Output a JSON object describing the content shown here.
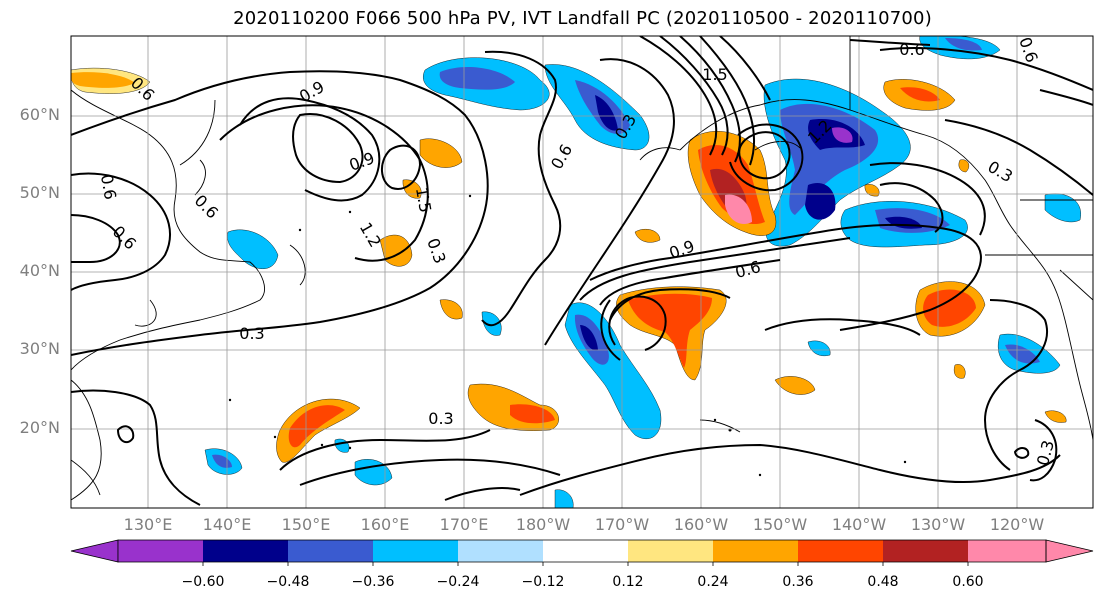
{
  "title": "2020110200 F066 500 hPa PV, IVT Landfall PC (2020110500 - 2020110700)",
  "lat_labels": [
    "60°N",
    "50°N",
    "40°N",
    "30°N",
    "20°N"
  ],
  "lon_labels": [
    "130°E",
    "140°E",
    "150°E",
    "160°E",
    "170°E",
    "180°W",
    "170°W",
    "160°W",
    "150°W",
    "140°W",
    "130°W",
    "120°W"
  ],
  "contour_labels": [
    "0.6",
    "0.9",
    "0.9",
    "0.6",
    "0.6",
    "0.6",
    "1.2",
    "1.5",
    "0.3",
    "0.3",
    "0.3",
    "1.5",
    "0.3",
    "0.6",
    "0.9",
    "0.6",
    "1.2",
    "0.3",
    "0.3",
    "0.6",
    "0.6"
  ],
  "colorbar": {
    "tick_labels": [
      "−0.60",
      "−0.48",
      "−0.36",
      "−0.24",
      "−0.12",
      "0.12",
      "0.24",
      "0.36",
      "0.48",
      "0.60"
    ],
    "colors": [
      "#9932cc",
      "#00008b",
      "#3a5bd0",
      "#00bfff",
      "#b0e0ff",
      "#ffffff",
      "#ffe680",
      "#ffa500",
      "#ff4500",
      "#b22222",
      "#ff88aa"
    ]
  }
}
